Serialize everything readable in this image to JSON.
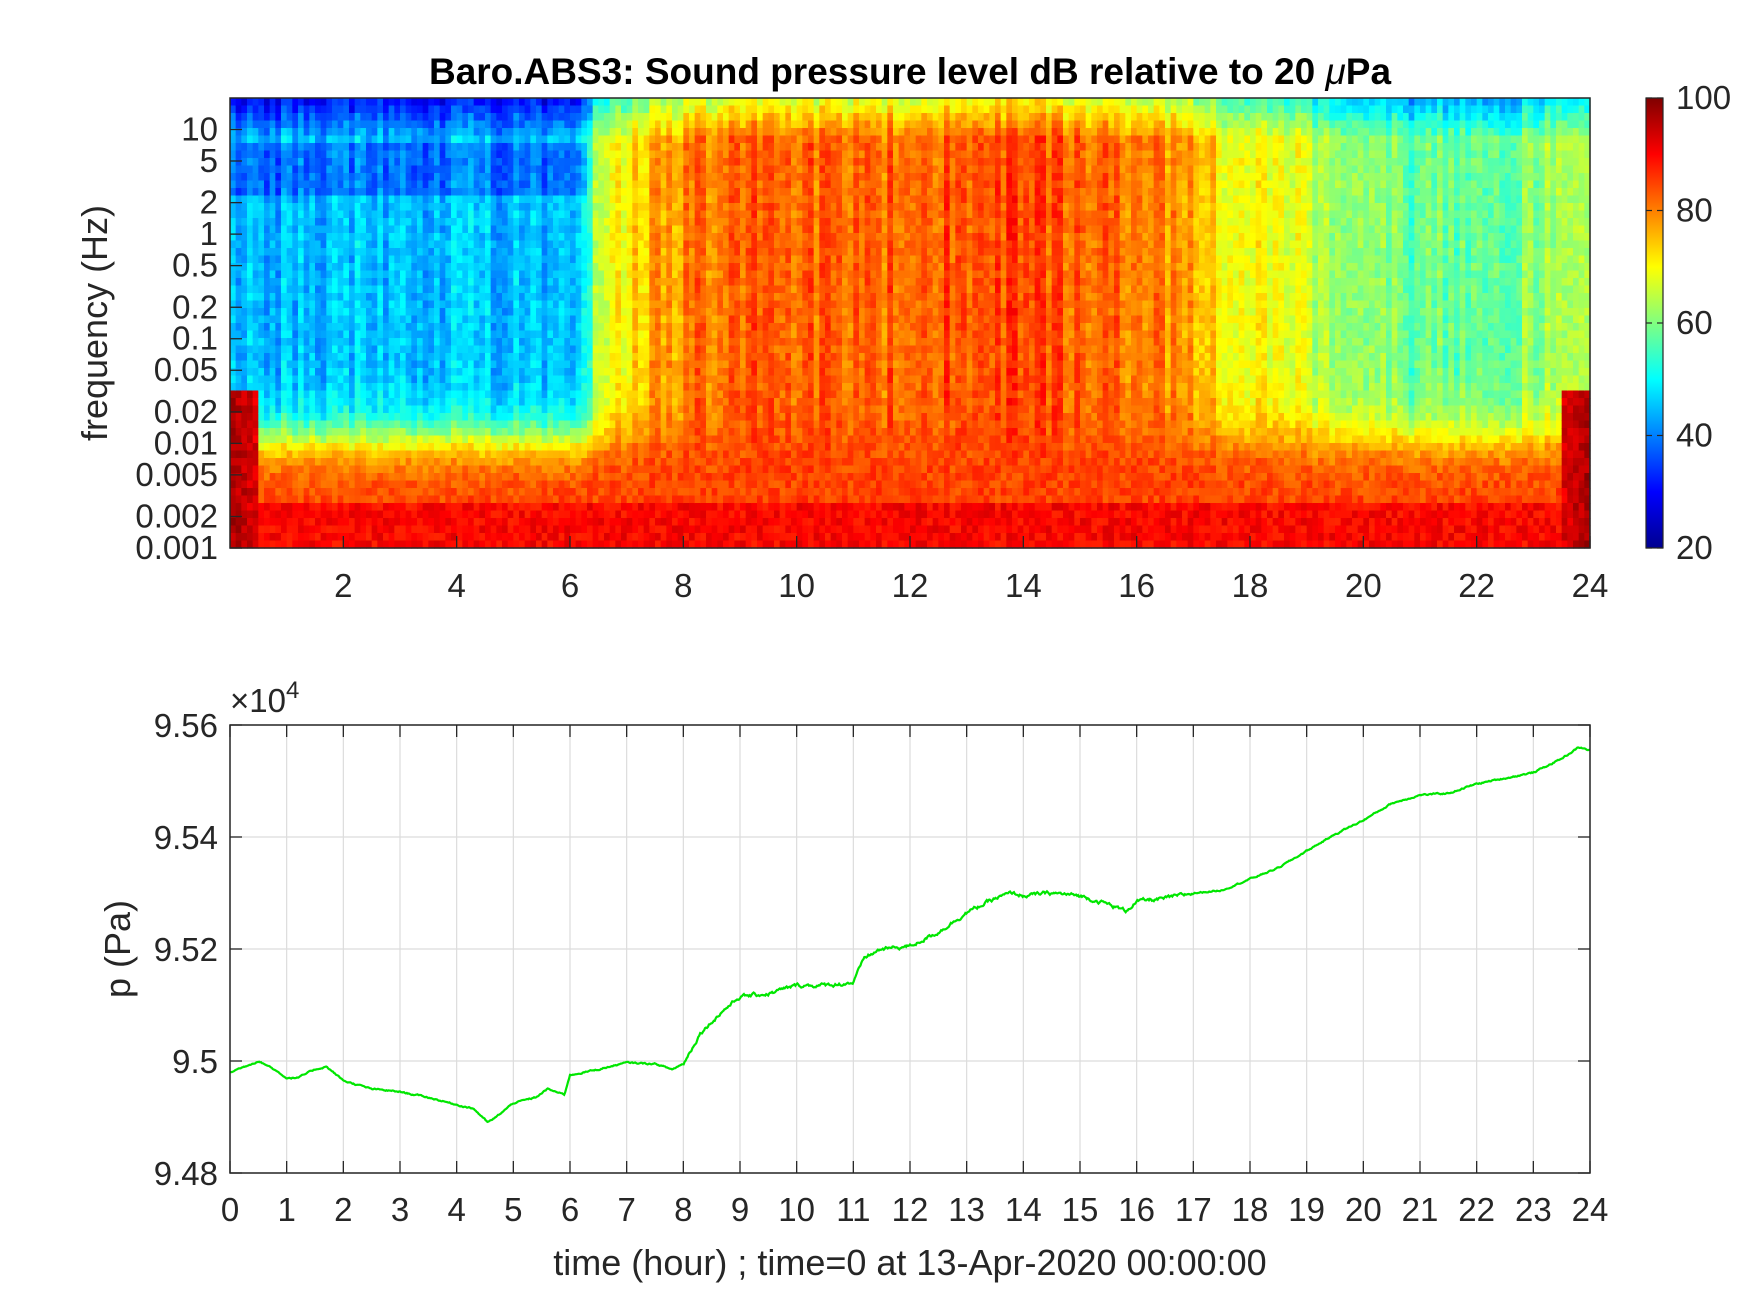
{
  "figure": {
    "title_prefix": "Baro.ABS3: Sound pressure level dB relative to 20 ",
    "title_mu": "μ",
    "title_suffix": "Pa"
  },
  "chart_data": [
    {
      "type": "heatmap",
      "title": "Baro.ABS3: Sound pressure level dB relative to 20 μPa",
      "ylabel": "frequency (Hz)",
      "xlabel": "",
      "xlim": [
        0,
        24
      ],
      "ylim": [
        0.001,
        20
      ],
      "yscale": "log",
      "x_ticks": [
        2,
        4,
        6,
        8,
        10,
        12,
        14,
        16,
        18,
        20,
        22,
        24
      ],
      "y_ticks": [
        0.001,
        0.002,
        0.005,
        0.01,
        0.02,
        0.05,
        0.1,
        0.2,
        0.5,
        1,
        2,
        5,
        10
      ],
      "y_tick_labels": [
        "0.001",
        "0.002",
        "0.005",
        "0.01",
        "0.02",
        "0.05",
        "0.1",
        "0.2",
        "0.5",
        "1",
        "2",
        "5",
        "10"
      ],
      "colormap": "jet",
      "colorbar": {
        "ticks": [
          20,
          40,
          60,
          80,
          100
        ],
        "clim": [
          20,
          100
        ]
      },
      "quiet_level_db": [
        47,
        45,
        44,
        43,
        44,
        44,
        44,
        44,
        45,
        46,
        46,
        46,
        47,
        45,
        45,
        44
      ],
      "active_level_db": [
        {
          "hour": 0.0,
          "db": 45
        },
        {
          "hour": 6.2,
          "db": 45
        },
        {
          "hour": 6.5,
          "db": 68
        },
        {
          "hour": 7.5,
          "db": 76
        },
        {
          "hour": 8.5,
          "db": 82
        },
        {
          "hour": 12,
          "db": 82
        },
        {
          "hour": 13.5,
          "db": 85
        },
        {
          "hour": 16.5,
          "db": 80
        },
        {
          "hour": 17.5,
          "db": 72
        },
        {
          "hour": 19,
          "db": 66
        },
        {
          "hour": 21,
          "db": 57
        },
        {
          "hour": 23.5,
          "db": 62
        },
        {
          "hour": 24,
          "db": 66
        }
      ],
      "low_frequency_level_db": 85
    },
    {
      "type": "line",
      "ylabel": "p (Pa)",
      "xlabel": "time (hour) ; time=0 at 13-Apr-2020 00:00:00",
      "y_exponent_label": "×10",
      "y_exponent_power": "4",
      "xlim": [
        0,
        24
      ],
      "ylim": [
        94800,
        95600
      ],
      "x_ticks": [
        0,
        1,
        2,
        3,
        4,
        5,
        6,
        7,
        8,
        9,
        10,
        11,
        12,
        13,
        14,
        15,
        16,
        17,
        18,
        19,
        20,
        21,
        22,
        23,
        24
      ],
      "y_ticks": [
        94800,
        95000,
        95200,
        95400,
        95600
      ],
      "y_tick_labels": [
        "9.48",
        "9.5",
        "9.52",
        "9.54",
        "9.56"
      ],
      "grid": true,
      "color": "#00e600",
      "series": [
        {
          "x": [
            0,
            0.5,
            0.7,
            1.0,
            1.2,
            1.5,
            1.7,
            2.0,
            2.5,
            3.0,
            3.5,
            4.0,
            4.3,
            4.55,
            4.7,
            5.0,
            5.4,
            5.6,
            5.9,
            6.0,
            6.5,
            7.0,
            7.5,
            7.8,
            8.0,
            8.3,
            8.7,
            9.0,
            9.5,
            10.0,
            10.5,
            11.0,
            11.2,
            11.5,
            12.0,
            12.5,
            13.0,
            13.5,
            13.8,
            14.0,
            14.5,
            15.0,
            15.5,
            15.8,
            16.0,
            16.5,
            17.0,
            17.5,
            18.0,
            18.5,
            19.0,
            19.5,
            20.0,
            20.5,
            21.0,
            21.5,
            22.0,
            22.5,
            23.0,
            23.5,
            23.8,
            24.0
          ],
          "y": [
            94980,
            95000,
            94990,
            94970,
            94970,
            94985,
            94990,
            94965,
            94950,
            94945,
            94935,
            94922,
            94915,
            94890,
            94900,
            94925,
            94935,
            94950,
            94940,
            94975,
            94985,
            94997,
            94995,
            94985,
            94995,
            95050,
            95090,
            95115,
            95120,
            95135,
            95135,
            95140,
            95185,
            95200,
            95205,
            95230,
            95265,
            95290,
            95300,
            95295,
            95300,
            95295,
            95280,
            95268,
            95285,
            95290,
            95300,
            95305,
            95325,
            95345,
            95375,
            95405,
            95430,
            95460,
            95475,
            95478,
            95495,
            95505,
            95515,
            95540,
            95560,
            95555
          ]
        }
      ]
    }
  ]
}
